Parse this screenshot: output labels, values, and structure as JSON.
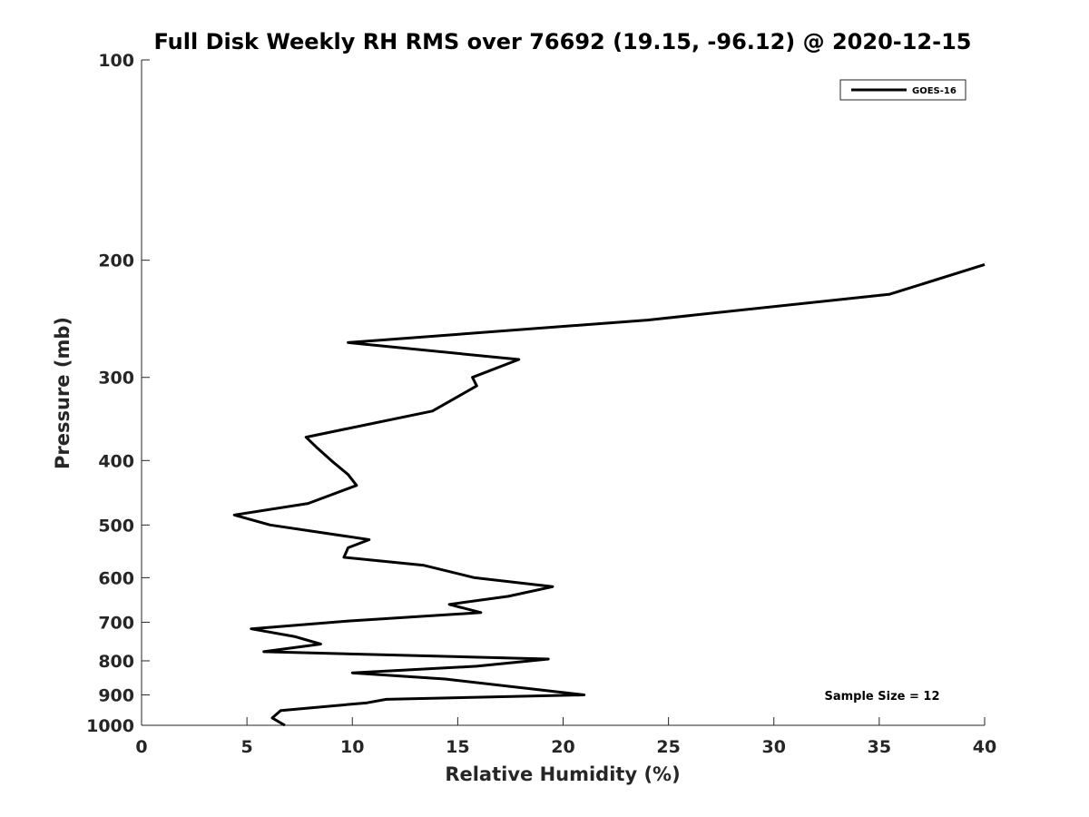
{
  "chart_data": {
    "type": "line",
    "title": "Full Disk Weekly RH RMS over 76692 (19.15, -96.12) @ 2020-12-15",
    "xlabel": "Relative Humidity (%)",
    "ylabel": "Pressure (mb)",
    "xlim": [
      0,
      40
    ],
    "ylim": [
      1000,
      100
    ],
    "yscale": "log",
    "x_ticks": [
      "0",
      "5",
      "10",
      "15",
      "20",
      "25",
      "30",
      "35",
      "40"
    ],
    "y_ticks": [
      "100",
      "200",
      "300",
      "400",
      "500",
      "600",
      "700",
      "800",
      "900",
      "1000"
    ],
    "legend_position": "top-right",
    "annotation": "Sample Size = 12",
    "grid": false,
    "line_color": "#000000",
    "series": [
      {
        "name": "GOES-16",
        "points": [
          [
            40.0,
            203
          ],
          [
            35.5,
            225
          ],
          [
            24.0,
            246
          ],
          [
            9.8,
            266
          ],
          [
            17.9,
            282
          ],
          [
            15.7,
            300
          ],
          [
            15.9,
            309
          ],
          [
            13.8,
            337
          ],
          [
            7.8,
            369
          ],
          [
            8.3,
            382
          ],
          [
            9.0,
            400
          ],
          [
            9.8,
            420
          ],
          [
            10.2,
            436
          ],
          [
            7.9,
            464
          ],
          [
            4.4,
            483
          ],
          [
            6.1,
            500
          ],
          [
            10.8,
            526
          ],
          [
            9.8,
            541
          ],
          [
            9.6,
            559
          ],
          [
            13.4,
            575
          ],
          [
            15.8,
            600
          ],
          [
            19.5,
            619
          ],
          [
            17.4,
            640
          ],
          [
            14.6,
            658
          ],
          [
            16.1,
            677
          ],
          [
            9.8,
            697
          ],
          [
            5.2,
            716
          ],
          [
            7.3,
            736
          ],
          [
            8.5,
            755
          ],
          [
            5.8,
            775
          ],
          [
            19.3,
            795
          ],
          [
            15.9,
            815
          ],
          [
            10.0,
            834
          ],
          [
            14.4,
            852
          ],
          [
            21.0,
            900
          ],
          [
            11.6,
            914
          ],
          [
            10.7,
            925
          ],
          [
            6.6,
            950
          ],
          [
            6.2,
            975
          ],
          [
            6.8,
            1000
          ]
        ]
      }
    ]
  }
}
